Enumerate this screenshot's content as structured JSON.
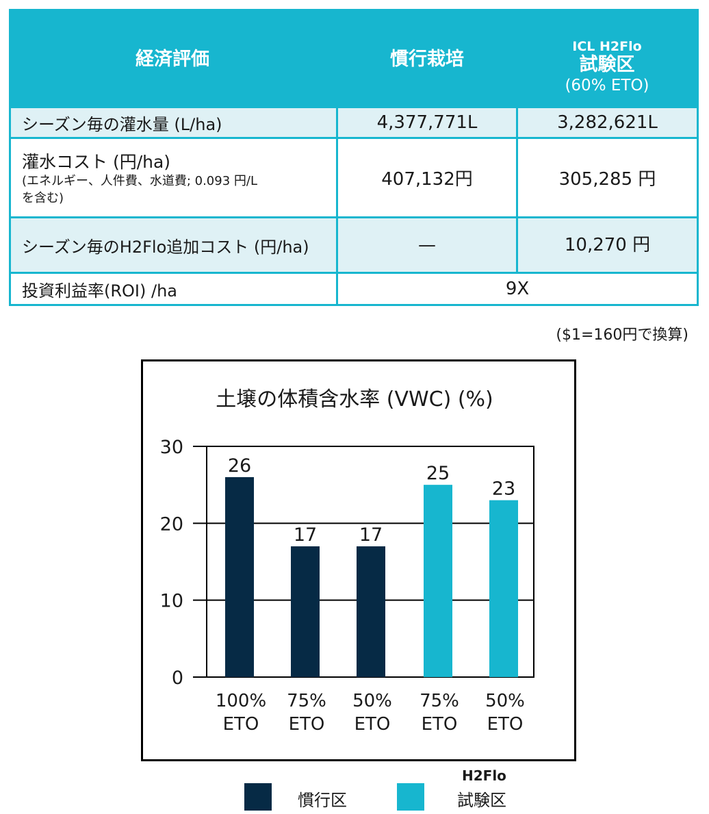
{
  "table": {
    "headers": {
      "col1": "経済評価",
      "col2": "慣行栽培",
      "col3_line1": "ICL H2Flo",
      "col3_line2": "試験区",
      "col3_line3": "(60% ETO)"
    },
    "rows": [
      {
        "label": "シーズン毎の灌水量 (L/ha)",
        "conventional": "4,377,771L",
        "trial": "3,282,621L"
      },
      {
        "label": "灌水コスト (円/ha)",
        "sublabel_line1": "(エネルギー、人件費、水道費; 0.093 円/L",
        "sublabel_line2": "を含む)",
        "conventional": "407,132円",
        "trial": "305,285 円"
      },
      {
        "label": "シーズン毎のH2Flo追加コスト (円/ha)",
        "conventional": "—",
        "trial": "10,270 円"
      },
      {
        "label": "投資利益率(ROI) /ha",
        "merged": "9X"
      }
    ]
  },
  "note": "($1=160円で換算)",
  "chart_data": {
    "type": "bar",
    "title": "土壌の体積含水率 (VWC) (%)",
    "categories": [
      [
        "100%",
        "ETO"
      ],
      [
        "75%",
        "ETO"
      ],
      [
        "50%",
        "ETO"
      ],
      [
        "75%",
        "ETO"
      ],
      [
        "50%",
        "ETO"
      ]
    ],
    "values": [
      26,
      17,
      17,
      25,
      23
    ],
    "value_labels": [
      "26",
      "17",
      "17",
      "25",
      "23"
    ],
    "groups": [
      "conventional",
      "conventional",
      "conventional",
      "trial",
      "trial"
    ],
    "ylim": [
      0,
      30
    ],
    "yticks": [
      0,
      10,
      20,
      30
    ],
    "grid": true,
    "colors": {
      "conventional": "#062a45",
      "trial": "#17b6cf"
    }
  },
  "legend": {
    "conventional": "慣行区",
    "trial_top": "H2Flo",
    "trial": "試験区"
  },
  "colors": {
    "header": "#17b6cf",
    "light_row": "#dff1f5",
    "dark_bar": "#062a45"
  }
}
